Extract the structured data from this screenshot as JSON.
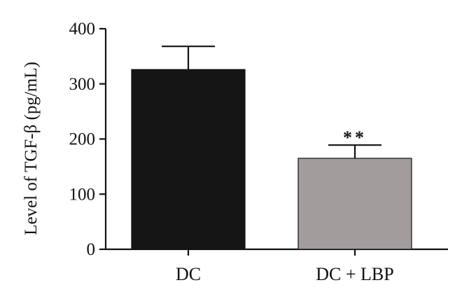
{
  "chart_data": {
    "type": "bar",
    "categories": [
      "DC",
      "DC + LBP"
    ],
    "values": [
      326,
      165
    ],
    "errors": [
      42,
      24
    ],
    "colors": [
      "#151515",
      "#a39c9c"
    ],
    "ylabel": "Level of TGF-β (pg/mL)",
    "ylim": [
      0,
      400
    ],
    "yticks": [
      0,
      100,
      200,
      300,
      400
    ],
    "annotations": [
      {
        "category": "DC + LBP",
        "text": "**"
      }
    ],
    "grid": false
  }
}
